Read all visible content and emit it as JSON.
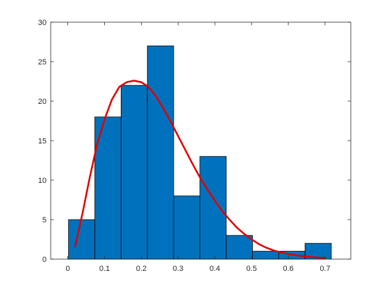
{
  "chart_data": {
    "type": "bar",
    "subtype": "histogram-with-fitted-curve",
    "bins": {
      "edges": [
        0.002,
        0.0735,
        0.145,
        0.2165,
        0.288,
        0.3595,
        0.431,
        0.5025,
        0.574,
        0.6455,
        0.717
      ],
      "counts": [
        5,
        18,
        22,
        27,
        8,
        13,
        3,
        1,
        1,
        2
      ]
    },
    "fit_curve": {
      "name": "",
      "x": [
        0.02,
        0.04,
        0.06,
        0.08,
        0.1,
        0.12,
        0.14,
        0.16,
        0.18,
        0.2,
        0.22,
        0.24,
        0.26,
        0.28,
        0.3,
        0.32,
        0.34,
        0.36,
        0.38,
        0.4,
        0.42,
        0.44,
        0.46,
        0.48,
        0.5,
        0.52,
        0.54,
        0.56,
        0.58,
        0.6,
        0.62,
        0.64,
        0.66,
        0.68,
        0.7
      ],
      "y": [
        1.6,
        5.8,
        10.4,
        14.6,
        17.7,
        20.2,
        21.8,
        22.4,
        22.6,
        22.4,
        21.8,
        20.6,
        19.1,
        17.4,
        15.6,
        13.8,
        12.0,
        10.3,
        8.8,
        7.4,
        6.1,
        5.0,
        4.0,
        3.2,
        2.5,
        1.9,
        1.45,
        1.1,
        0.85,
        0.65,
        0.5,
        0.37,
        0.28,
        0.2,
        0.14
      ]
    },
    "title": "",
    "xlabel": "",
    "ylabel": "",
    "xlim": [
      -0.0465,
      0.77
    ],
    "ylim": [
      0,
      30
    ],
    "x_ticks": [
      "0",
      "0.1",
      "0.2",
      "0.3",
      "0.4",
      "0.5",
      "0.6",
      "0.7"
    ],
    "y_ticks": [
      "0",
      "5",
      "10",
      "15",
      "20",
      "25",
      "30"
    ],
    "grid": false,
    "legend": "none"
  },
  "colors": {
    "bar_fill": "#0072BD",
    "bar_edge": "#000000",
    "curve": "#E00000",
    "axes": "#262626",
    "background": "#ffffff"
  }
}
